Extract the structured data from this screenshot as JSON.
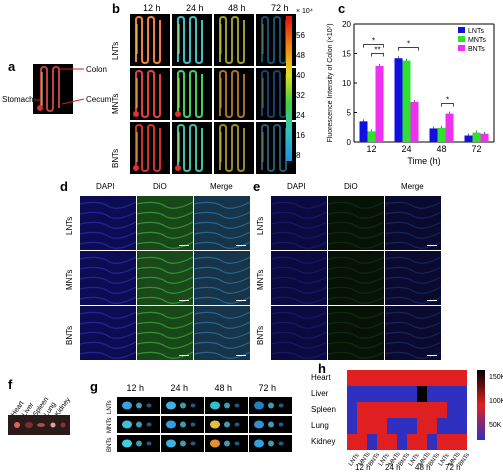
{
  "panels": {
    "a": "a",
    "b": "b",
    "c": "c",
    "d": "d",
    "e": "e",
    "f": "f",
    "g": "g",
    "h": "h"
  },
  "panel_a": {
    "colon": "Colon",
    "cecum": "Cecum",
    "stomach": "Stomach"
  },
  "panel_b": {
    "times": [
      "12 h",
      "24 h",
      "48 h",
      "72 h"
    ],
    "rows": [
      "LNTs",
      "MNTs",
      "BNTs"
    ],
    "colorbar_unit": "× 10⁴",
    "colorbar_ticks": [
      "56",
      "48",
      "40",
      "32",
      "24",
      "16",
      "8"
    ]
  },
  "panel_d": {
    "cols": [
      "DAPI",
      "DiO",
      "Merge"
    ],
    "rows": [
      "LNTs",
      "MNTs",
      "BNTs"
    ]
  },
  "panel_e": {
    "cols": [
      "DAPI",
      "DiO",
      "Merge"
    ],
    "rows": [
      "LNTs",
      "MNTs",
      "BNTs"
    ]
  },
  "panel_f": {
    "organs": [
      "Heart",
      "Liver",
      "Spleen",
      "Lung",
      "Kidney"
    ]
  },
  "panel_g": {
    "times": [
      "12 h",
      "24 h",
      "48 h",
      "72 h"
    ],
    "rows": [
      "LNTs",
      "MNTs",
      "BNTs"
    ]
  },
  "panel_h": {
    "rows": [
      "Heart",
      "Liver",
      "Spleen",
      "Lung",
      "Kidney"
    ],
    "cols": [
      "LNTs",
      "MNTs",
      "BNTs",
      "LNTs",
      "MNTs",
      "BNTs",
      "LNTs",
      "MNTs",
      "BNTs",
      "LNTs",
      "MNTs",
      "BNTs"
    ],
    "times": [
      "12 h",
      "24 h",
      "48 h",
      "72 h"
    ],
    "colorbar_ticks": [
      "150K",
      "100K",
      "50K"
    ],
    "colors": {
      "low": "#3030c0",
      "high": "#e02020",
      "max": "#000000"
    }
  },
  "chart_data": {
    "type": "bar",
    "title": "",
    "xlabel": "Time (h)",
    "ylabel": "Fluorescence Intensity of Colon (×10⁷)",
    "categories": [
      "12",
      "24",
      "48",
      "72"
    ],
    "ylim": [
      0,
      20
    ],
    "yticks": [
      "0",
      "5",
      "10",
      "15",
      "20"
    ],
    "legend_position": "top-right",
    "series": [
      {
        "name": "LNTs",
        "color": "#1010e0",
        "values": [
          3.5,
          14.2,
          2.3,
          1.1
        ]
      },
      {
        "name": "MNTs",
        "color": "#30e030",
        "values": [
          1.8,
          13.8,
          2.4,
          1.6
        ]
      },
      {
        "name": "BNTs",
        "color": "#f030f0",
        "values": [
          12.9,
          6.8,
          4.8,
          1.4
        ]
      }
    ],
    "significance": [
      "*",
      "**",
      "*",
      "*"
    ]
  }
}
